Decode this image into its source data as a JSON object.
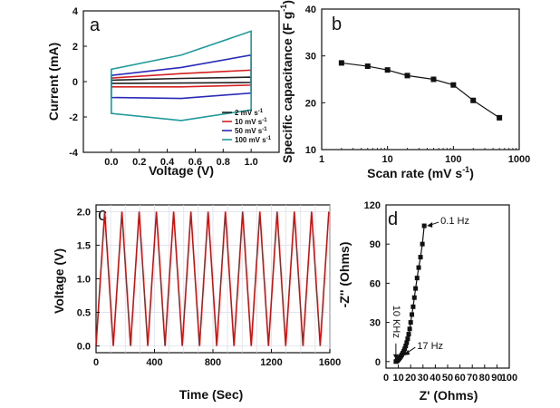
{
  "chart_data": [
    {
      "panel": "a",
      "type": "line",
      "xlabel": "Voltage (V)",
      "ylabel": "Current (mA)",
      "xlim": [
        -0.2,
        1.2
      ],
      "ylim": [
        -4,
        4
      ],
      "xticks": [
        0.0,
        0.2,
        0.4,
        0.6,
        0.8,
        1.0
      ],
      "xtick_labels": [
        "0.0",
        "0.2",
        "0.4",
        "0.6",
        "0.8",
        "1.0"
      ],
      "yticks": [
        -4,
        -2,
        0,
        2,
        4
      ],
      "ytick_labels": [
        "-4",
        "-2",
        "0",
        "2",
        "4"
      ],
      "legend_position": "bottom-right",
      "series": [
        {
          "name": "2 mV s",
          "name_sup": "-1",
          "color": "#222222",
          "upper": [
            [
              0.0,
              0.08
            ],
            [
              0.5,
              0.18
            ],
            [
              1.0,
              0.25
            ]
          ],
          "lower": [
            [
              0.0,
              -0.1
            ],
            [
              0.5,
              -0.08
            ],
            [
              1.0,
              -0.05
            ]
          ]
        },
        {
          "name": "10 mV s",
          "name_sup": "-1",
          "color": "#d42020",
          "upper": [
            [
              0.0,
              0.2
            ],
            [
              0.5,
              0.45
            ],
            [
              1.0,
              0.65
            ]
          ],
          "lower": [
            [
              0.0,
              -0.3
            ],
            [
              0.5,
              -0.3
            ],
            [
              1.0,
              -0.2
            ]
          ]
        },
        {
          "name": "50 mV s",
          "name_sup": "-1",
          "color": "#2a2ab8",
          "upper": [
            [
              0.0,
              0.35
            ],
            [
              0.5,
              0.8
            ],
            [
              1.0,
              1.5
            ]
          ],
          "lower": [
            [
              0.0,
              -0.9
            ],
            [
              0.5,
              -0.95
            ],
            [
              1.0,
              -0.65
            ]
          ]
        },
        {
          "name": "100 mV s",
          "name_sup": "-1",
          "color": "#209a9a",
          "upper": [
            [
              0.0,
              0.7
            ],
            [
              0.5,
              1.5
            ],
            [
              1.0,
              2.85
            ]
          ],
          "lower": [
            [
              0.0,
              -1.8
            ],
            [
              0.5,
              -2.2
            ],
            [
              1.0,
              -1.6
            ]
          ]
        }
      ]
    },
    {
      "panel": "b",
      "type": "line",
      "xscale": "log",
      "xlabel": "Scan rate (mV s",
      "xlabel_sup": "-1",
      "xlabel_end": ")",
      "ylabel": "Specific capacitance (F g",
      "ylabel_sup": "-1",
      "ylabel_end": ")",
      "xlim": [
        1,
        1000
      ],
      "ylim": [
        10,
        40
      ],
      "xticks": [
        1,
        10,
        100,
        1000
      ],
      "xtick_labels": [
        "1",
        "10",
        "100",
        "1000"
      ],
      "yticks": [
        10,
        20,
        30,
        40
      ],
      "ytick_labels": [
        "10",
        "20",
        "30",
        "40"
      ],
      "x": [
        2,
        5,
        10,
        20,
        50,
        100,
        200,
        500
      ],
      "values": [
        28.5,
        27.8,
        27.0,
        25.8,
        25.0,
        23.8,
        20.5,
        16.8
      ],
      "color": "#111111"
    },
    {
      "panel": "c",
      "type": "line",
      "xlabel": "Time (Sec)",
      "ylabel": "Voltage (V)",
      "xlim": [
        0,
        1600
      ],
      "ylim": [
        -0.1,
        2.1
      ],
      "xticks": [
        0,
        400,
        800,
        1200,
        1600
      ],
      "xtick_labels": [
        "0",
        "400",
        "800",
        "1200",
        "1600"
      ],
      "yticks": [
        0.0,
        0.5,
        1.0,
        1.5,
        2.0
      ],
      "ytick_labels": [
        "0.0",
        "0.5",
        "1.0",
        "1.5",
        "2.0"
      ],
      "cycles": 14,
      "cycle_period_s": 118,
      "v_min": 0.0,
      "v_max": 2.0,
      "color": "#cc1111"
    },
    {
      "panel": "d",
      "type": "scatter",
      "xlabel": "Z' (Ohms)",
      "ylabel": "-Z'' (Ohms)",
      "xlim": [
        0,
        100
      ],
      "ylim": [
        -5,
        120
      ],
      "xticks": [
        0,
        10,
        20,
        30,
        40,
        50,
        60,
        70,
        80,
        90,
        100
      ],
      "xtick_labels": [
        "0",
        "10",
        "20",
        "30",
        "40",
        "50",
        "60",
        "70",
        "80",
        "90",
        "100"
      ],
      "yticks": [
        0,
        30,
        60,
        90,
        120
      ],
      "ytick_labels": [
        "0",
        "30",
        "60",
        "90",
        "120"
      ],
      "x": [
        8.0,
        8.6,
        9.2,
        9.8,
        10.5,
        11.2,
        12.0,
        12.8,
        13.6,
        14.4,
        15.2,
        16.0,
        16.8,
        17.6,
        18.4,
        19.2,
        20.0,
        21.0,
        22.0,
        23.0,
        24.0,
        25.2,
        26.5,
        28.0,
        29.5,
        31.0
      ],
      "values": [
        0.0,
        0.3,
        0.8,
        1.4,
        2.1,
        3.0,
        4.0,
        5.2,
        6.5,
        8.0,
        9.8,
        12.0,
        14.5,
        17.5,
        21.0,
        25.0,
        30.0,
        36.0,
        42.0,
        49.0,
        56.0,
        64.0,
        72.0,
        80.0,
        90.0,
        104.0
      ],
      "color": "#111111",
      "annotations": [
        {
          "text": "0.1 Hz",
          "x": 31.0,
          "y": 104.0
        },
        {
          "text": "17 Hz",
          "x": 12.0,
          "y": 4.0
        },
        {
          "text": "10 KHz",
          "x": 8.0,
          "y": 0.0
        }
      ]
    }
  ],
  "panel_labels": [
    "a",
    "b",
    "c",
    "d"
  ]
}
